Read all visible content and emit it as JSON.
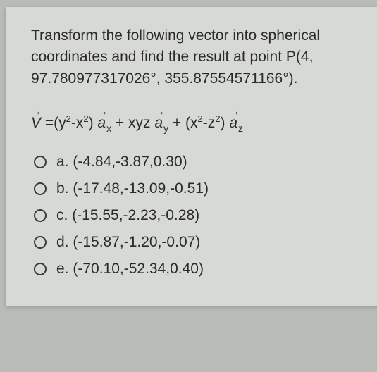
{
  "background_color": "#b8bbb7",
  "paper_color": "#d7d9d5",
  "text_color": "#2a2a2a",
  "font_size": 21,
  "question": {
    "line1": "Transform the following vector into spherical",
    "line2": "coordinates and find the result at point P(4,",
    "line3": "97.780977317026°, 355.87554571166°)."
  },
  "equation": {
    "lhs_symbol": "V",
    "term1_coeff_open": "=(y",
    "term1_exp1": "2",
    "term1_mid": "-x",
    "term1_exp2": "2",
    "term1_close": ") ",
    "unit1": "a",
    "unit1_sub": "x",
    "plus1": " + xyz ",
    "unit2": "a",
    "unit2_sub": "y",
    "plus2": " + (x",
    "term3_exp1": "2",
    "term3_mid": "-z",
    "term3_exp2": "2",
    "term3_close": ") ",
    "unit3": "a",
    "unit3_sub": "z"
  },
  "options": [
    {
      "letter": "a.",
      "value": "(-4.84,-3.87,0.30)"
    },
    {
      "letter": "b.",
      "value": "(-17.48,-13.09,-0.51)"
    },
    {
      "letter": "c.",
      "value": "(-15.55,-2.23,-0.28)"
    },
    {
      "letter": "d.",
      "value": "(-15.87,-1.20,-0.07)"
    },
    {
      "letter": "e.",
      "value": "(-70.10,-52.34,0.40)"
    }
  ]
}
